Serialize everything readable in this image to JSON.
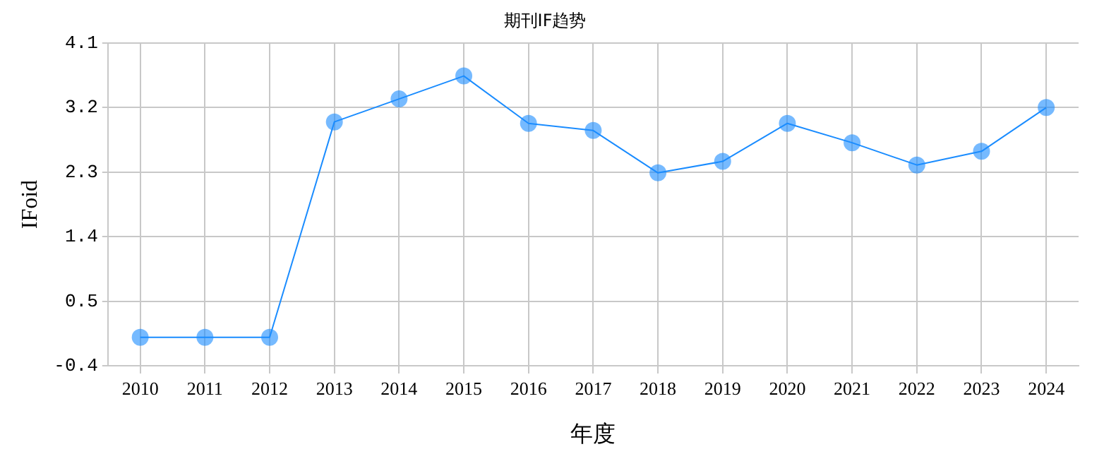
{
  "chart_data": {
    "type": "line",
    "title": "期刊IF趋势",
    "xlabel": "年度",
    "ylabel": "IFoid",
    "categories": [
      "2010",
      "2011",
      "2012",
      "2013",
      "2014",
      "2015",
      "2016",
      "2017",
      "2018",
      "2019",
      "2020",
      "2021",
      "2022",
      "2023",
      "2024"
    ],
    "series": [
      {
        "color": "#1a8cff",
        "values": [
          0,
          0,
          0,
          3.0,
          3.32,
          3.64,
          2.98,
          2.88,
          2.29,
          2.45,
          2.98,
          2.71,
          2.4,
          2.59,
          3.2
        ]
      }
    ],
    "ylim": [
      -0.4,
      4.1
    ],
    "yticks": [
      -0.4,
      0.5,
      1.4,
      2.3,
      3.2,
      4.1
    ],
    "grid": true,
    "marker": "circle",
    "line_style": "solid",
    "legend": false
  }
}
